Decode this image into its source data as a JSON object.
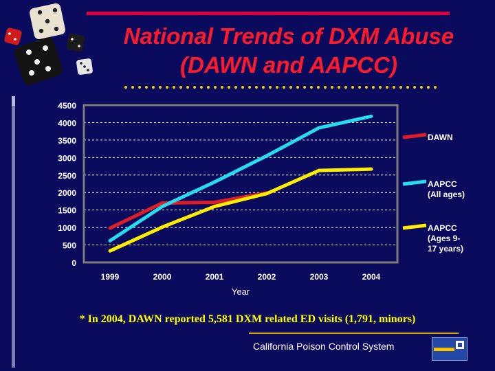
{
  "title_line1": "National Trends of DXM Abuse",
  "title_line2": "(DAWN and AAPCC)",
  "footnote": "* In 2004, DAWN reported 5,581 DXM related ED visits (1,791, minors)",
  "footer": "California Poison Control System",
  "chart_data": {
    "type": "line",
    "title": "",
    "xlabel": "Year",
    "ylabel": "",
    "x": [
      "1999",
      "2000",
      "2001",
      "2002",
      "2003",
      "2004"
    ],
    "ylim": [
      0,
      4500
    ],
    "yticks": [
      "0",
      "500",
      "1000",
      "1500",
      "2000",
      "2500",
      "3000",
      "3500",
      "4000",
      "4500"
    ],
    "grid": "horizontal dashed",
    "legend_position": "right",
    "series": [
      {
        "name": "DAWN",
        "color": "#e01c24",
        "values": [
          980,
          1700,
          1720,
          1990,
          null,
          null
        ]
      },
      {
        "name": "AAPCC (All ages)",
        "label_lines": [
          "AAPCC",
          "(All ages)"
        ],
        "color": "#27dcef",
        "values": [
          620,
          1600,
          2300,
          3050,
          3850,
          4180
        ]
      },
      {
        "name": "AAPCC (Ages 9-17 years)",
        "label_lines": [
          "AAPCC",
          "(Ages 9-",
          "17 years)"
        ],
        "color": "#ffee00",
        "values": [
          330,
          1010,
          1600,
          1970,
          2630,
          2670
        ]
      }
    ]
  }
}
